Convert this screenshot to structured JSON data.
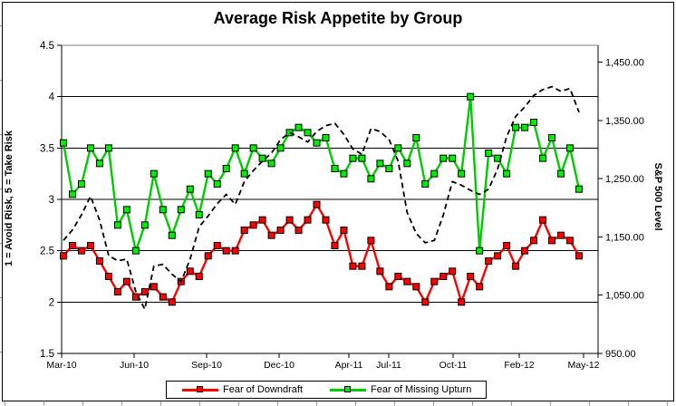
{
  "title": "Average Risk Appetite by Group",
  "axes": {
    "left": {
      "title": "1 = Avoid Risk, 5 = Take Risk",
      "tick_labels": [
        "4.5",
        "4",
        "3.5",
        "3",
        "2.5",
        "2",
        "1.5"
      ],
      "tick_values": [
        4.5,
        4,
        3.5,
        3,
        2.5,
        2,
        1.5
      ]
    },
    "right": {
      "title": "S&P 500 Level",
      "tick_labels": [
        "1,450.00",
        "1,350.00",
        "1,250.00",
        "1,150.00",
        "1,050.00",
        "950.00"
      ],
      "tick_values": [
        1450,
        1350,
        1250,
        1150,
        1050,
        950
      ]
    },
    "x": {
      "tick_labels": [
        "Mar-10",
        "Jun-10",
        "Sep-10",
        "Dec-10",
        "Apr-11",
        "Jul-11",
        "Oct-11",
        "Feb-12",
        "May-12"
      ]
    }
  },
  "legend": {
    "items": [
      {
        "label": "Fear of Downdraft",
        "line_color": "#ff0000",
        "marker_color": "#ff0000"
      },
      {
        "label": "Fear of Missing Upturn",
        "line_color": "#00cc00",
        "marker_color": "#00ee00"
      }
    ]
  },
  "colors": {
    "grid": "#000000",
    "plot_top_border": "#808080",
    "frame": "#000000",
    "dashed_line": "#000000",
    "sheet_tick": "#909090"
  },
  "chart_data": {
    "type": "line",
    "title": "Average Risk Appetite by Group",
    "x_tick_labels": [
      "Mar-10",
      "Jun-10",
      "Sep-10",
      "Dec-10",
      "Apr-11",
      "Jul-11",
      "Oct-11",
      "Feb-12",
      "May-12"
    ],
    "left_axis": {
      "label": "1 = Avoid Risk, 5 = Take Risk",
      "range": [
        1.5,
        4.5
      ],
      "tick_step": 0.5
    },
    "right_axis": {
      "label": "S&P 500 Level",
      "range": [
        950,
        1479
      ],
      "ticks": [
        950,
        1050,
        1150,
        1250,
        1350,
        1450
      ]
    },
    "grid": true,
    "legend_position": "bottom",
    "series": [
      {
        "name": "Fear of Downdraft",
        "axis": "left",
        "style": "solid",
        "marker": "square",
        "line_color": "#ff0000",
        "marker_color": "#ff0000",
        "values": [
          2.45,
          2.55,
          2.5,
          2.55,
          2.4,
          2.25,
          2.1,
          2.2,
          2.05,
          2.1,
          2.15,
          2.05,
          2.0,
          2.2,
          2.3,
          2.25,
          2.45,
          2.55,
          2.5,
          2.5,
          2.7,
          2.75,
          2.8,
          2.65,
          2.7,
          2.8,
          2.7,
          2.8,
          2.95,
          2.8,
          2.55,
          2.7,
          2.35,
          2.35,
          2.6,
          2.3,
          2.15,
          2.25,
          2.2,
          2.15,
          2.0,
          2.2,
          2.25,
          2.3,
          2.0,
          2.25,
          2.15,
          2.4,
          2.45,
          2.55,
          2.35,
          2.5,
          2.6,
          2.8,
          2.6,
          2.65,
          2.6,
          2.45
        ]
      },
      {
        "name": "Fear of Missing Upturn",
        "axis": "left",
        "style": "solid",
        "marker": "square",
        "line_color": "#00cc00",
        "marker_color": "#00ee00",
        "values": [
          3.55,
          3.05,
          3.15,
          3.5,
          3.35,
          3.5,
          2.75,
          2.9,
          2.5,
          2.75,
          3.25,
          2.9,
          2.65,
          2.9,
          3.1,
          2.85,
          3.25,
          3.15,
          3.3,
          3.5,
          3.25,
          3.5,
          3.4,
          3.35,
          3.5,
          3.65,
          3.7,
          3.65,
          3.55,
          3.6,
          3.3,
          3.25,
          3.4,
          3.4,
          3.2,
          3.35,
          3.3,
          3.5,
          3.35,
          3.6,
          3.15,
          3.25,
          3.4,
          3.4,
          3.25,
          4.0,
          2.5,
          3.45,
          3.4,
          3.25,
          3.7,
          3.7,
          3.75,
          3.4,
          3.6,
          3.25,
          3.5,
          3.1
        ]
      },
      {
        "name": "S&P 500 Level",
        "axis": "right",
        "style": "dashed",
        "marker": "none",
        "line_color": "#000000",
        "in_legend": false,
        "values": [
          1144,
          1162,
          1188,
          1220,
          1179,
          1118,
          1109,
          1112,
          1056,
          1026,
          1100,
          1103,
          1086,
          1073,
          1112,
          1167,
          1186,
          1207,
          1223,
          1206,
          1245,
          1264,
          1280,
          1294,
          1317,
          1329,
          1322,
          1313,
          1331,
          1341,
          1345,
          1326,
          1301,
          1292,
          1336,
          1331,
          1317,
          1280,
          1192,
          1156,
          1140,
          1144,
          1188,
          1245,
          1239,
          1230,
          1223,
          1232,
          1267,
          1322,
          1357,
          1373,
          1393,
          1403,
          1408,
          1400,
          1405,
          1364
        ]
      }
    ]
  }
}
